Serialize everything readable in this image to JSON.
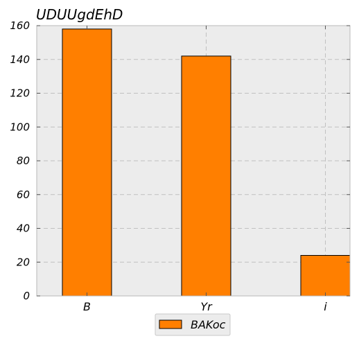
{
  "chart_data": {
    "type": "bar",
    "title": "UDUUgdEhD",
    "xlabel": "",
    "ylabel": "",
    "categories": [
      "B",
      "Yr",
      "i"
    ],
    "series": [
      {
        "name": "BAKoc",
        "values": [
          158,
          142,
          24
        ]
      }
    ],
    "ylim": [
      0,
      160
    ],
    "yticks": [
      0,
      20,
      40,
      60,
      80,
      100,
      120,
      140,
      160
    ],
    "grid": true,
    "legend": "bottom-center",
    "colors": {
      "bar_fill": "#ff7f00",
      "bar_edge": "#000000",
      "plot_background": "#ececec",
      "grid": "#c0c0c0",
      "axes": "#b8b8b8"
    }
  }
}
